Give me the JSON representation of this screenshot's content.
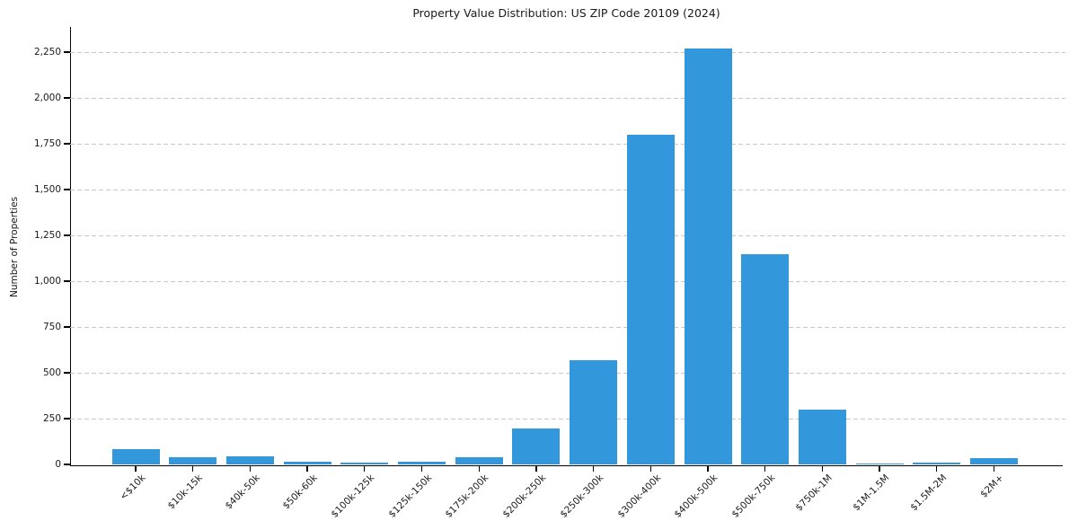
{
  "chart_data": {
    "type": "bar",
    "title": "Property Value Distribution: US ZIP Code 20109 (2024)",
    "xlabel": "",
    "ylabel": "Number of Properties",
    "categories": [
      "<$10k",
      "$10k-15k",
      "$40k-50k",
      "$50k-60k",
      "$100k-125k",
      "$125k-150k",
      "$175k-200k",
      "$200k-250k",
      "$250k-300k",
      "$300k-400k",
      "$400k-500k",
      "$500k-750k",
      "$750k-1M",
      "$1M-1.5M",
      "$1.5M-2M",
      "$2M+"
    ],
    "values": [
      85,
      38,
      45,
      14,
      10,
      16,
      37,
      195,
      570,
      1800,
      2270,
      1145,
      300,
      7,
      12,
      35
    ],
    "yticks": [
      0,
      250,
      500,
      750,
      1000,
      1250,
      1500,
      1750,
      2000,
      2250
    ],
    "ytick_labels": [
      "0",
      "250",
      "500",
      "750",
      "1,000",
      "1,250",
      "1,500",
      "1,750",
      "2,000",
      "2,250"
    ],
    "ylim": [
      0,
      2380
    ],
    "grid": "horizontal-dashed",
    "legend": "none",
    "colors": {
      "bar": "#3398db",
      "gridline": "#c9c9c9",
      "axis": "#000000",
      "text": "#1a1a1a",
      "background": "#ffffff"
    }
  }
}
